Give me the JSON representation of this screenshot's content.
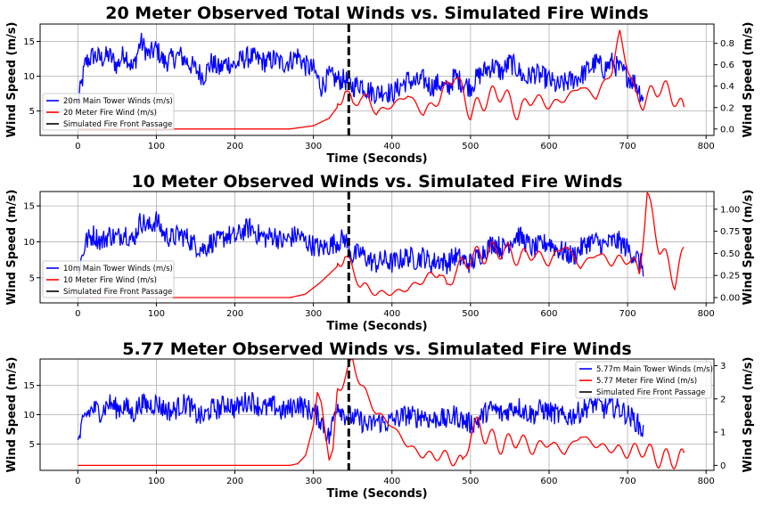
{
  "chart_data": [
    {
      "type": "line",
      "title": "20 Meter Observed Total Winds vs. Simulated Fire Winds",
      "xlabel": "Time (Seconds)",
      "ylabel": "Wind Speed (m/s)",
      "ylabel_right": "Wind Speed (m/s)",
      "xlim": [
        -48,
        810
      ],
      "xticks": [
        0,
        100,
        200,
        300,
        400,
        500,
        600,
        700,
        800
      ],
      "ylim": [
        1.5,
        17.5
      ],
      "yticks": [
        5,
        10,
        15
      ],
      "ylim_right": [
        -0.06,
        0.98
      ],
      "yticks_right": [
        0.0,
        0.2,
        0.4,
        0.6,
        0.8
      ],
      "grid": true,
      "legend_position": "lower-left",
      "vline_x": 345,
      "series": [
        {
          "name": "20m Main Tower Winds (m/s)",
          "color": "#0000ff",
          "axis": "left",
          "x": [
            0,
            10,
            20,
            30,
            40,
            50,
            60,
            70,
            80,
            90,
            100,
            110,
            120,
            130,
            140,
            150,
            160,
            170,
            180,
            190,
            200,
            210,
            220,
            230,
            240,
            250,
            260,
            270,
            280,
            290,
            300,
            310,
            320,
            330,
            340,
            350,
            360,
            370,
            380,
            390,
            400,
            410,
            420,
            430,
            440,
            450,
            460,
            470,
            480,
            490,
            500,
            510,
            520,
            530,
            540,
            550,
            560,
            570,
            580,
            590,
            600,
            610,
            620,
            630,
            640,
            650,
            660,
            670,
            680,
            690,
            700,
            710,
            720
          ],
          "y": [
            6,
            12,
            13,
            12.5,
            13,
            11.5,
            13.5,
            11,
            15,
            13,
            14,
            12,
            12.5,
            13,
            12,
            11,
            10,
            12,
            11,
            12,
            11.5,
            12.5,
            12.8,
            12.3,
            12,
            12.5,
            11.8,
            12.2,
            13,
            11.5,
            11,
            8.5,
            10,
            9.5,
            9.5,
            8.5,
            9,
            8,
            7.5,
            8,
            7.5,
            8.5,
            9.5,
            9,
            9.5,
            8.5,
            9,
            8,
            10,
            9,
            8.5,
            10,
            11,
            11.5,
            10.5,
            12,
            11,
            9.5,
            10.5,
            10,
            9.5,
            8.5,
            9,
            9.5,
            10,
            11,
            12,
            11,
            12,
            11,
            10,
            9,
            7
          ]
        },
        {
          "name": "20 Meter Fire Wind (m/s)",
          "color": "#ff0000",
          "axis": "right",
          "x": [
            0,
            270,
            300,
            320,
            330,
            340,
            350,
            360,
            370,
            380,
            400,
            420,
            440,
            460,
            480,
            500,
            520,
            540,
            560,
            580,
            600,
            620,
            640,
            660,
            680,
            690,
            700,
            710,
            720,
            740,
            760,
            772
          ],
          "y": [
            0.0,
            0.0,
            0.03,
            0.1,
            0.2,
            0.38,
            0.22,
            0.3,
            0.28,
            0.15,
            0.22,
            0.32,
            0.15,
            0.28,
            0.52,
            0.15,
            0.28,
            0.35,
            0.15,
            0.3,
            0.22,
            0.28,
            0.4,
            0.3,
            0.55,
            0.88,
            0.6,
            0.3,
            0.25,
            0.4,
            0.3,
            0.15
          ]
        },
        {
          "name": "Simulated Fire Front Passage",
          "color": "#000000",
          "axis": "left",
          "x": [],
          "y": []
        }
      ]
    },
    {
      "type": "line",
      "title": "10 Meter Observed Winds vs. Simulated Fire Winds",
      "xlabel": "Time (Seconds)",
      "ylabel": "Wind Speed (m/s)",
      "ylabel_right": "Wind Speed (m/s)",
      "xlim": [
        -48,
        810
      ],
      "xticks": [
        0,
        100,
        200,
        300,
        400,
        500,
        600,
        700,
        800
      ],
      "ylim": [
        1.5,
        17
      ],
      "yticks": [
        5,
        10,
        15
      ],
      "ylim_right": [
        -0.06,
        1.2
      ],
      "yticks_right": [
        0.0,
        0.25,
        0.5,
        0.75,
        1.0
      ],
      "grid": true,
      "legend_position": "lower-left",
      "vline_x": 345,
      "series": [
        {
          "name": "10m Main Tower Winds (m/s)",
          "color": "#0000ff",
          "axis": "left",
          "x": [
            0,
            10,
            20,
            30,
            40,
            50,
            60,
            70,
            80,
            90,
            100,
            110,
            120,
            130,
            140,
            150,
            160,
            170,
            180,
            190,
            200,
            210,
            220,
            230,
            240,
            250,
            260,
            270,
            280,
            290,
            300,
            310,
            320,
            330,
            340,
            350,
            360,
            370,
            380,
            390,
            400,
            410,
            420,
            430,
            440,
            450,
            460,
            470,
            480,
            490,
            500,
            510,
            520,
            530,
            540,
            550,
            560,
            570,
            580,
            590,
            600,
            610,
            620,
            630,
            640,
            650,
            660,
            670,
            680,
            690,
            700,
            710,
            720
          ],
          "y": [
            5.5,
            10,
            11,
            10,
            11,
            10.5,
            11.5,
            10,
            13,
            12,
            13,
            11,
            10.5,
            11,
            10.5,
            9.5,
            9,
            10,
            10,
            11,
            10.5,
            11.5,
            12,
            11,
            10.5,
            11,
            10,
            10.5,
            11,
            10,
            9.5,
            9,
            9.5,
            10,
            10.5,
            8,
            8.5,
            7.5,
            7,
            7.5,
            7,
            7.5,
            8,
            7.5,
            8,
            7,
            7.5,
            7,
            8,
            7.5,
            7,
            8,
            9,
            10,
            9,
            10,
            11,
            10,
            9,
            9.5,
            10,
            9,
            8.5,
            8,
            9,
            10,
            10,
            9.5,
            10,
            10,
            9,
            8,
            6.5
          ]
        },
        {
          "name": "10 Meter Fire Wind (m/s)",
          "color": "#ff0000",
          "axis": "right",
          "x": [
            0,
            270,
            290,
            310,
            330,
            340,
            350,
            360,
            370,
            380,
            400,
            420,
            440,
            460,
            470,
            480,
            500,
            520,
            540,
            560,
            580,
            600,
            620,
            640,
            660,
            680,
            700,
            715,
            725,
            740,
            760,
            772
          ],
          "y": [
            0.0,
            0.0,
            0.04,
            0.18,
            0.35,
            0.5,
            0.3,
            0.15,
            0.1,
            0.05,
            0.05,
            0.1,
            0.2,
            0.3,
            0.1,
            0.3,
            0.45,
            0.5,
            0.55,
            0.45,
            0.5,
            0.4,
            0.6,
            0.35,
            0.5,
            0.4,
            0.45,
            0.3,
            1.15,
            0.6,
            0.2,
            0.5
          ]
        },
        {
          "name": "Simulated Fire Front Passage",
          "color": "#000000",
          "axis": "left",
          "x": [],
          "y": []
        }
      ]
    },
    {
      "type": "line",
      "title": "5.77 Meter Observed Winds vs. Simulated Fire Winds",
      "xlabel": "Time (Seconds)",
      "ylabel": "Wind Speed (m/s)",
      "ylabel_right": "Wind Speed (m/s)",
      "xlim": [
        -48,
        810
      ],
      "xticks": [
        0,
        100,
        200,
        300,
        400,
        500,
        600,
        700,
        800
      ],
      "ylim": [
        0.5,
        19.5
      ],
      "yticks": [
        5,
        10,
        15
      ],
      "ylim_right": [
        -0.15,
        3.2
      ],
      "yticks_right": [
        0,
        1,
        2,
        3
      ],
      "grid": true,
      "legend_position": "top-right",
      "vline_x": 345,
      "series": [
        {
          "name": "5.77m Main Tower Winds (m/s)",
          "color": "#0000ff",
          "axis": "left",
          "x": [
            0,
            10,
            20,
            30,
            40,
            50,
            60,
            70,
            80,
            90,
            100,
            110,
            120,
            130,
            140,
            150,
            160,
            170,
            180,
            190,
            200,
            210,
            220,
            230,
            240,
            250,
            260,
            270,
            280,
            290,
            300,
            310,
            320,
            330,
            340,
            350,
            360,
            370,
            380,
            390,
            400,
            410,
            420,
            430,
            440,
            450,
            460,
            470,
            480,
            490,
            500,
            510,
            520,
            530,
            540,
            550,
            560,
            570,
            580,
            590,
            600,
            610,
            620,
            630,
            640,
            650,
            660,
            670,
            680,
            690,
            700,
            710,
            720
          ],
          "y": [
            5,
            10,
            11,
            10.5,
            12,
            11,
            11.5,
            10,
            12,
            11.5,
            12,
            11,
            10.5,
            11.5,
            12,
            10,
            9.5,
            11,
            11,
            12,
            11,
            12,
            12.5,
            11.5,
            11,
            11.5,
            10.5,
            11,
            12,
            11,
            10.5,
            9,
            6,
            12,
            10,
            9.5,
            9,
            8,
            9,
            8.5,
            9,
            9.5,
            10,
            9.5,
            10,
            9,
            9.5,
            9,
            10,
            9,
            8.5,
            9,
            10.5,
            11,
            10,
            11,
            11.5,
            10.5,
            10,
            11,
            10.5,
            10,
            9.5,
            10,
            10.5,
            11.5,
            12,
            11,
            11.5,
            11,
            10,
            9,
            7
          ]
        },
        {
          "name": "5.77 Meter Fire Wind (m/s)",
          "color": "#ff0000",
          "axis": "right",
          "x": [
            0,
            270,
            280,
            290,
            300,
            305,
            310,
            315,
            320,
            325,
            330,
            340,
            350,
            360,
            370,
            380,
            390,
            400,
            420,
            440,
            460,
            480,
            490,
            500,
            510,
            520,
            540,
            560,
            580,
            600,
            620,
            640,
            660,
            680,
            700,
            720,
            740,
            760,
            772
          ],
          "y": [
            0.0,
            0.0,
            0.05,
            0.3,
            1.2,
            2.2,
            1.9,
            1.0,
            0.15,
            0.5,
            2.2,
            2.7,
            3.1,
            2.5,
            2.0,
            1.6,
            1.4,
            1.2,
            0.6,
            0.3,
            0.3,
            0.2,
            0.0,
            1.0,
            1.2,
            0.9,
            0.6,
            0.8,
            0.5,
            0.7,
            0.4,
            0.9,
            0.6,
            0.5,
            0.4,
            0.5,
            0.2,
            0.2,
            0.2
          ]
        },
        {
          "name": "Simulated Fire Front Passage",
          "color": "#000000",
          "axis": "left",
          "x": [],
          "y": []
        }
      ]
    }
  ]
}
